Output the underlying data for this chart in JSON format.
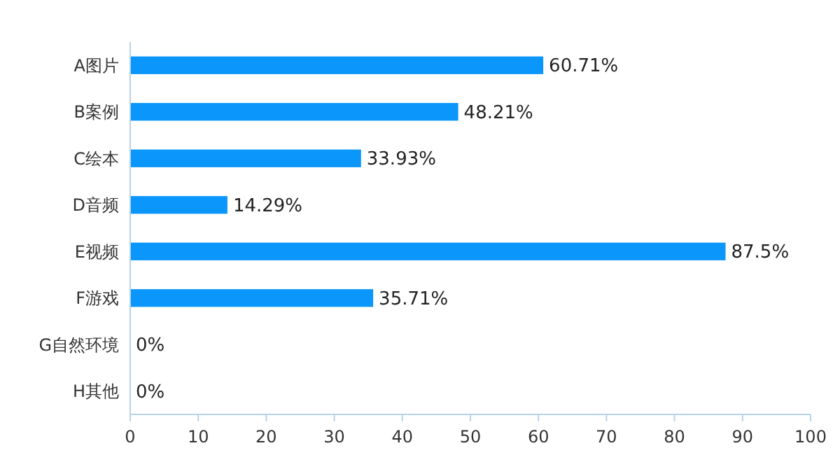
{
  "chart_data": {
    "type": "bar",
    "orientation": "horizontal",
    "categories": [
      "A图片",
      "B案例",
      "C绘本",
      "D音频",
      "E视频",
      "F游戏",
      "G自然环境",
      "H其他"
    ],
    "values": [
      60.71,
      48.21,
      33.93,
      14.29,
      87.5,
      35.71,
      0,
      0
    ],
    "value_labels": [
      "60.71%",
      "48.21%",
      "33.93%",
      "14.29%",
      "87.5%",
      "35.71%",
      "0%",
      "0%"
    ],
    "color": "#0a96fa",
    "xlim": [
      0,
      100
    ],
    "xticks": [
      0,
      10,
      20,
      30,
      40,
      50,
      60,
      70,
      80,
      90,
      100
    ],
    "grid": false
  }
}
